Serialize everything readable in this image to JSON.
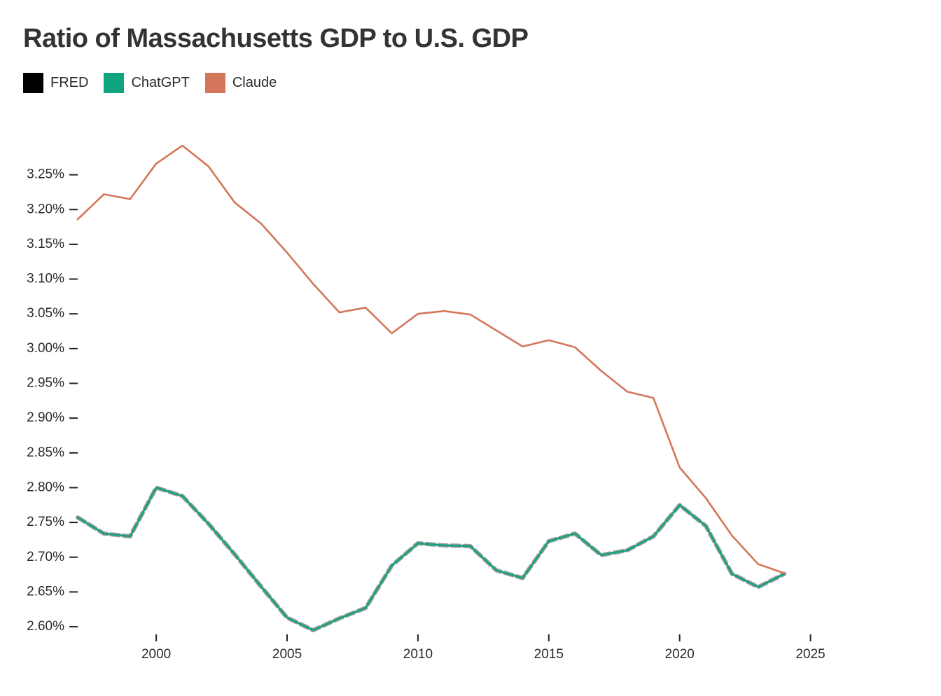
{
  "chart_data": {
    "type": "line",
    "title": "Ratio of Massachusetts GDP to U.S. GDP",
    "xlabel": "",
    "ylabel": "",
    "xlim": [
      1997,
      2026
    ],
    "ylim": [
      2.595,
      3.305
    ],
    "x_ticks": [
      2000,
      2005,
      2010,
      2015,
      2020,
      2025
    ],
    "x_tick_labels": [
      "2000",
      "2005",
      "2010",
      "2015",
      "2020",
      "2025"
    ],
    "y_ticks": [
      2.6,
      2.65,
      2.7,
      2.75,
      2.8,
      2.85,
      2.9,
      2.95,
      3.0,
      3.05,
      3.1,
      3.15,
      3.2,
      3.25
    ],
    "y_tick_labels": [
      "2.60%",
      "2.65%",
      "2.70%",
      "2.75%",
      "2.80%",
      "2.85%",
      "2.90%",
      "2.95%",
      "3.00%",
      "3.05%",
      "3.10%",
      "3.15%",
      "3.20%",
      "3.25%"
    ],
    "grid": false,
    "legend_position": "top-left",
    "x": [
      1997,
      1998,
      1999,
      2000,
      2001,
      2002,
      2003,
      2004,
      2005,
      2006,
      2007,
      2008,
      2009,
      2010,
      2011,
      2012,
      2013,
      2014,
      2015,
      2016,
      2017,
      2018,
      2019,
      2020,
      2021,
      2022,
      2023,
      2024
    ],
    "series": [
      {
        "name": "FRED",
        "color": "#000000",
        "line_color": "#9a9a9a",
        "style": "dashed",
        "values": [
          2.757,
          2.734,
          2.73,
          2.8,
          2.788,
          2.748,
          2.704,
          2.658,
          2.613,
          2.595,
          2.612,
          2.627,
          2.688,
          2.72,
          2.717,
          2.716,
          2.681,
          2.67,
          2.723,
          2.734,
          2.703,
          2.71,
          2.73,
          2.775,
          2.745,
          2.676,
          2.657,
          2.676
        ]
      },
      {
        "name": "ChatGPT",
        "color": "#10a37f",
        "line_color": "#10a37f",
        "style": "solid",
        "values": [
          2.757,
          2.734,
          2.73,
          2.8,
          2.788,
          2.748,
          2.704,
          2.658,
          2.613,
          2.595,
          2.612,
          2.627,
          2.688,
          2.72,
          2.717,
          2.716,
          2.681,
          2.67,
          2.723,
          2.734,
          2.703,
          2.71,
          2.73,
          2.775,
          2.745,
          2.676,
          2.657,
          2.676
        ]
      },
      {
        "name": "Claude",
        "color": "#d4765a",
        "line_color": "#d4765a",
        "style": "solid",
        "values": [
          3.186,
          3.222,
          3.215,
          3.266,
          3.292,
          3.262,
          3.21,
          3.18,
          3.138,
          3.093,
          3.052,
          3.059,
          3.022,
          3.05,
          3.054,
          3.049,
          3.026,
          3.003,
          3.012,
          3.002,
          2.968,
          2.938,
          2.929,
          2.829,
          2.785,
          2.731,
          2.69,
          2.677
        ]
      }
    ]
  }
}
